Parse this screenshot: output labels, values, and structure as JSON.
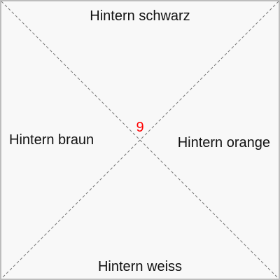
{
  "zones": {
    "top": "Hintern schwarz",
    "bottom": "Hintern weiss",
    "left": "Hintern braun",
    "right": "Hintern orange"
  },
  "center": {
    "count": "9",
    "color": "#ff0000"
  },
  "colors": {
    "background": "#f8f8f8",
    "border": "#bdbdbd",
    "diagonal": "#777777"
  }
}
